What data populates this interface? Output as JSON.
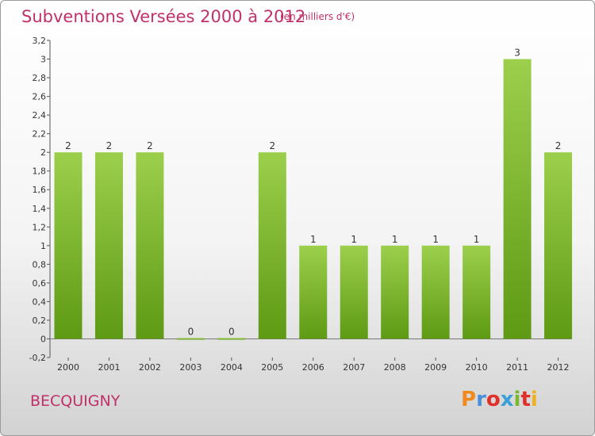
{
  "header": {
    "title": "Subventions Versées 2000 à 2012",
    "subtitle": "(en milliers d'€)"
  },
  "footer": {
    "commune": "BECQUIGNY",
    "logo_text": "Proxiti"
  },
  "colors": {
    "title": "#c0306a",
    "bar_top": "#9ccf4c",
    "bar_bottom": "#5e9a14",
    "logo": [
      "#f08a1c",
      "#4a8fd8",
      "#e0302a",
      "#3aa0d8",
      "#7ab82e",
      "#e0302a",
      "#f0b21c"
    ]
  },
  "chart_data": {
    "type": "bar",
    "title": "Subventions Versées 2000 à 2012",
    "subtitle": "(en milliers d'€)",
    "categories": [
      "2000",
      "2001",
      "2002",
      "2003",
      "2004",
      "2005",
      "2006",
      "2007",
      "2008",
      "2009",
      "2010",
      "2011",
      "2012"
    ],
    "values": [
      2,
      2,
      2,
      0,
      0,
      2,
      1,
      1,
      1,
      1,
      1,
      3,
      2
    ],
    "value_labels": [
      "2",
      "2",
      "2",
      "0",
      "0",
      "2",
      "1",
      "1",
      "1",
      "1",
      "1",
      "3",
      "2"
    ],
    "yticks": [
      -0.2,
      0,
      0.2,
      0.4,
      0.6,
      0.8,
      1,
      1.2,
      1.4,
      1.6,
      1.8,
      2,
      2.2,
      2.4,
      2.6,
      2.8,
      3,
      3.2
    ],
    "ytick_labels": [
      "-0,2",
      "0",
      "0,2",
      "0,4",
      "0,6",
      "0,8",
      "1",
      "1,2",
      "1,4",
      "1,6",
      "1,8",
      "2",
      "2,2",
      "2,4",
      "2,6",
      "2,8",
      "3",
      "3,2"
    ],
    "ylim": [
      -0.2,
      3.2
    ],
    "xlabel": "",
    "ylabel": "",
    "grid": false,
    "legend": "none"
  }
}
